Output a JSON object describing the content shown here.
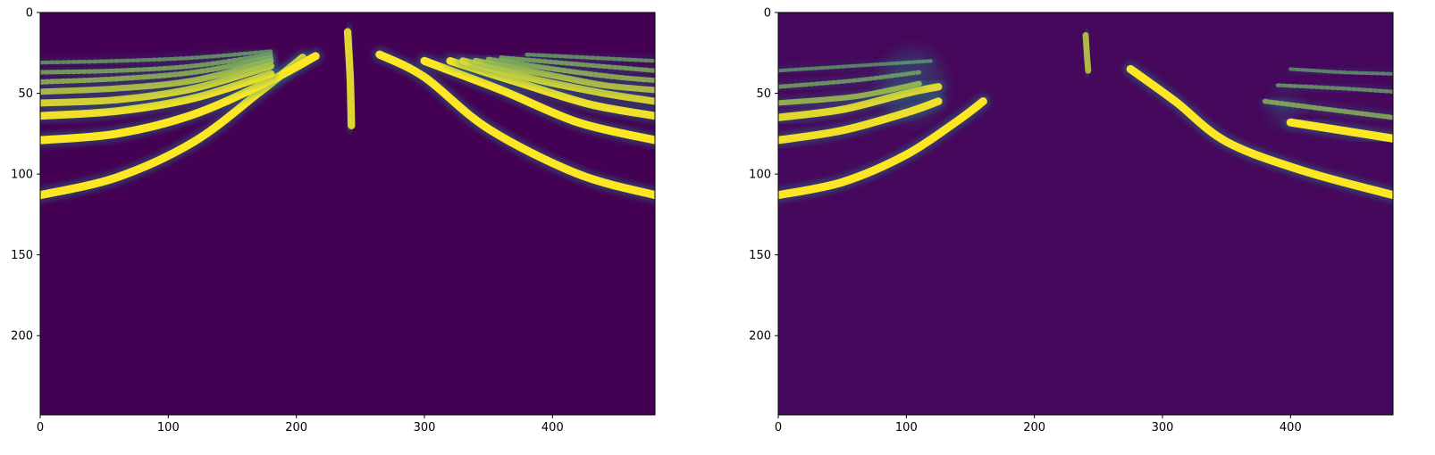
{
  "chart_data": [
    {
      "type": "heatmap",
      "colormap": "viridis",
      "xlim": [
        0,
        480
      ],
      "ylim": [
        249,
        0
      ],
      "xticks": [
        0,
        100,
        200,
        300,
        400
      ],
      "yticks": [
        0,
        50,
        100,
        150,
        200
      ],
      "background_color": "#440154",
      "highlight_color": "#fde725",
      "mid_color": "#21918c",
      "curves": [
        {
          "side": "left",
          "points": [
            [
              0,
              113
            ],
            [
              60,
              102
            ],
            [
              120,
              80
            ],
            [
              170,
              50
            ],
            [
              205,
              28
            ]
          ],
          "level": 1.0
        },
        {
          "side": "left",
          "points": [
            [
              0,
              79
            ],
            [
              60,
              75
            ],
            [
              120,
              63
            ],
            [
              180,
              42
            ],
            [
              215,
              27
            ]
          ],
          "level": 1.0
        },
        {
          "side": "left",
          "points": [
            [
              0,
              64
            ],
            [
              60,
              61
            ],
            [
              120,
              53
            ],
            [
              180,
              38
            ]
          ],
          "level": 0.95
        },
        {
          "side": "left",
          "points": [
            [
              0,
              56
            ],
            [
              60,
              54
            ],
            [
              120,
              47
            ],
            [
              180,
              33
            ]
          ],
          "level": 0.85
        },
        {
          "side": "left",
          "points": [
            [
              0,
              49
            ],
            [
              60,
              47
            ],
            [
              120,
              42
            ],
            [
              180,
              30
            ]
          ],
          "level": 0.7
        },
        {
          "side": "left",
          "points": [
            [
              0,
              43
            ],
            [
              60,
              41
            ],
            [
              120,
              37
            ],
            [
              180,
              28
            ]
          ],
          "level": 0.55
        },
        {
          "side": "left",
          "points": [
            [
              0,
              37
            ],
            [
              60,
              36
            ],
            [
              120,
              33
            ],
            [
              180,
              26
            ]
          ],
          "level": 0.45
        },
        {
          "side": "left",
          "points": [
            [
              0,
              31
            ],
            [
              60,
              30
            ],
            [
              120,
              28
            ],
            [
              180,
              24
            ]
          ],
          "level": 0.35
        },
        {
          "side": "right",
          "points": [
            [
              265,
              26
            ],
            [
              300,
              40
            ],
            [
              350,
              72
            ],
            [
              420,
              100
            ],
            [
              480,
              113
            ]
          ],
          "level": 1.0
        },
        {
          "side": "right",
          "points": [
            [
              300,
              30
            ],
            [
              360,
              48
            ],
            [
              420,
              68
            ],
            [
              480,
              79
            ]
          ],
          "level": 1.0
        },
        {
          "side": "right",
          "points": [
            [
              320,
              30
            ],
            [
              380,
              45
            ],
            [
              430,
              57
            ],
            [
              480,
              64
            ]
          ],
          "level": 0.95
        },
        {
          "side": "right",
          "points": [
            [
              330,
              30
            ],
            [
              390,
              42
            ],
            [
              440,
              50
            ],
            [
              480,
              55
            ]
          ],
          "level": 0.85
        },
        {
          "side": "right",
          "points": [
            [
              340,
              30
            ],
            [
              400,
              39
            ],
            [
              440,
              45
            ],
            [
              480,
              48
            ]
          ],
          "level": 0.7
        },
        {
          "side": "right",
          "points": [
            [
              350,
              29
            ],
            [
              410,
              36
            ],
            [
              450,
              40
            ],
            [
              480,
              42
            ]
          ],
          "level": 0.55
        },
        {
          "side": "right",
          "points": [
            [
              360,
              28
            ],
            [
              420,
              32
            ],
            [
              480,
              36
            ]
          ],
          "level": 0.45
        },
        {
          "side": "right",
          "points": [
            [
              380,
              26
            ],
            [
              430,
              28
            ],
            [
              480,
              30
            ]
          ],
          "level": 0.35
        },
        {
          "side": "center",
          "points": [
            [
              240,
              12
            ],
            [
              242,
              40
            ],
            [
              243,
              70
            ]
          ],
          "level": 0.9
        }
      ]
    },
    {
      "type": "heatmap",
      "colormap": "viridis",
      "xlim": [
        0,
        480
      ],
      "ylim": [
        249,
        0
      ],
      "xticks": [
        0,
        100,
        200,
        300,
        400
      ],
      "yticks": [
        0,
        50,
        100,
        150,
        200
      ],
      "background_color": "#46085c",
      "highlight_color": "#fde725",
      "mid_color": "#21918c",
      "curves": [
        {
          "side": "left",
          "points": [
            [
              0,
              113
            ],
            [
              50,
              105
            ],
            [
              100,
              88
            ],
            [
              140,
              67
            ],
            [
              160,
              55
            ]
          ],
          "level": 1.0
        },
        {
          "side": "left",
          "points": [
            [
              0,
              79
            ],
            [
              50,
              73
            ],
            [
              100,
              62
            ],
            [
              125,
              55
            ]
          ],
          "level": 0.95
        },
        {
          "side": "left",
          "points": [
            [
              0,
              65
            ],
            [
              50,
              60
            ],
            [
              100,
              50
            ],
            [
              125,
              46
            ]
          ],
          "level": 0.9
        },
        {
          "side": "left",
          "points": [
            [
              0,
              56
            ],
            [
              60,
              52
            ],
            [
              110,
              44
            ]
          ],
          "level": 0.6
        },
        {
          "side": "left",
          "points": [
            [
              0,
              46
            ],
            [
              60,
              42
            ],
            [
              110,
              37
            ]
          ],
          "level": 0.4
        },
        {
          "side": "left",
          "points": [
            [
              0,
              36
            ],
            [
              60,
              33
            ],
            [
              120,
              30
            ]
          ],
          "level": 0.3
        },
        {
          "side": "right",
          "points": [
            [
              275,
              35
            ],
            [
              310,
              55
            ],
            [
              350,
              80
            ],
            [
              410,
              98
            ],
            [
              480,
              113
            ]
          ],
          "level": 1.0
        },
        {
          "side": "right",
          "points": [
            [
              400,
              68
            ],
            [
              440,
              73
            ],
            [
              480,
              78
            ]
          ],
          "level": 1.0
        },
        {
          "side": "right",
          "points": [
            [
              380,
              55
            ],
            [
              430,
              60
            ],
            [
              480,
              65
            ]
          ],
          "level": 0.5
        },
        {
          "side": "right",
          "points": [
            [
              390,
              45
            ],
            [
              440,
              47
            ],
            [
              480,
              49
            ]
          ],
          "level": 0.35
        },
        {
          "side": "right",
          "points": [
            [
              400,
              35
            ],
            [
              440,
              37
            ],
            [
              480,
              38
            ]
          ],
          "level": 0.3
        },
        {
          "side": "center",
          "points": [
            [
              240,
              14
            ],
            [
              241,
              26
            ],
            [
              242,
              36
            ]
          ],
          "level": 0.7
        }
      ],
      "blobs": [
        {
          "x": 105,
          "y": 45,
          "rx": 25,
          "ry": 22,
          "level": 0.3
        },
        {
          "x": 395,
          "y": 60,
          "rx": 12,
          "ry": 10,
          "level": 0.25
        }
      ]
    }
  ]
}
